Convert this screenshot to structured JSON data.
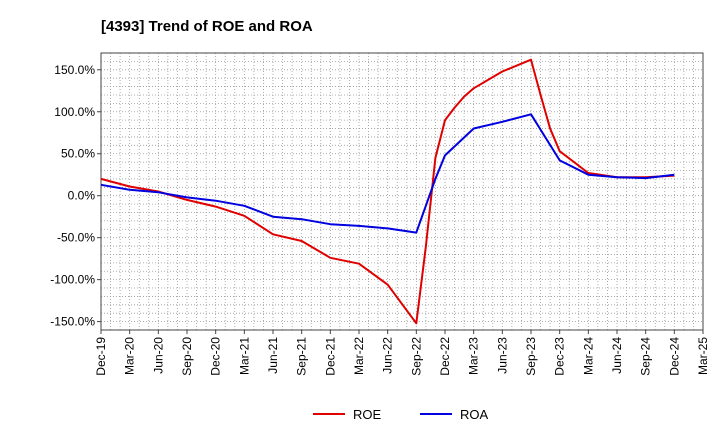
{
  "chart_data": {
    "type": "line",
    "title": "[4393]  Trend of ROE and ROA",
    "xlabel": "",
    "ylabel": "",
    "x_ticks": [
      "Dec-19",
      "Mar-20",
      "Jun-20",
      "Sep-20",
      "Dec-20",
      "Mar-21",
      "Jun-21",
      "Sep-21",
      "Dec-21",
      "Mar-22",
      "Jun-22",
      "Sep-22",
      "Dec-22",
      "Mar-23",
      "Jun-23",
      "Sep-23",
      "Dec-23",
      "Mar-24",
      "Jun-24",
      "Sep-24",
      "Dec-24",
      "Mar-25"
    ],
    "y_ticks": [
      150,
      100,
      50,
      0,
      -50,
      -100,
      -150
    ],
    "y_tick_labels": [
      "150.0%",
      "100.0%",
      "50.0%",
      "0.0%",
      "-50.0%",
      "-100.0%",
      "-150.0%"
    ],
    "ylim": [
      -160,
      170
    ],
    "grid": true,
    "legend_position": "bottom-center",
    "series": [
      {
        "name": "ROE",
        "color": "#e00000",
        "x": [
          "Dec-19",
          "Mar-20",
          "Jun-20",
          "Sep-20",
          "Dec-20",
          "Mar-21",
          "Jun-21",
          "Sep-21",
          "Dec-21",
          "Mar-22",
          "Jun-22",
          "Sep-22",
          "Oct-22",
          "Nov-22",
          "Dec-22",
          "Jan-23",
          "Feb-23",
          "Mar-23",
          "Jun-23",
          "Sep-23",
          "Oct-23",
          "Nov-23",
          "Dec-23",
          "Mar-24",
          "Jun-24",
          "Sep-24",
          "Dec-24"
        ],
        "values": [
          20,
          11,
          5,
          -5,
          -13,
          -24,
          -46,
          -54,
          -74,
          -81,
          -106,
          -152,
          -60,
          45,
          90,
          105,
          118,
          128,
          148,
          162,
          120,
          80,
          53,
          27,
          22,
          22,
          24
        ]
      },
      {
        "name": "ROA",
        "color": "#0000e0",
        "x": [
          "Dec-19",
          "Mar-20",
          "Jun-20",
          "Sep-20",
          "Dec-20",
          "Mar-21",
          "Jun-21",
          "Sep-21",
          "Dec-21",
          "Mar-22",
          "Jun-22",
          "Sep-22",
          "Nov-22",
          "Dec-22",
          "Mar-23",
          "Jun-23",
          "Sep-23",
          "Dec-23",
          "Mar-24",
          "Jun-24",
          "Sep-24",
          "Dec-24"
        ],
        "values": [
          13,
          7,
          4,
          -2,
          -6,
          -12,
          -25,
          -28,
          -34,
          -36,
          -39,
          -44,
          20,
          48,
          80,
          88,
          97,
          42,
          25,
          22,
          21,
          25
        ]
      }
    ]
  }
}
